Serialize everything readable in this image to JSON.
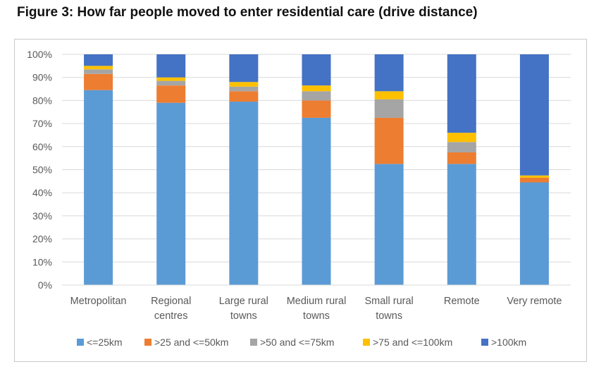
{
  "figure_title": "Figure 3: How far people moved to enter residential care (drive distance)",
  "chart_data": {
    "type": "bar",
    "stacked": true,
    "percent_stacked": true,
    "title": "Figure 3: How far people moved to enter residential care (drive distance)",
    "xlabel": "",
    "ylabel": "",
    "ylim": [
      0,
      100
    ],
    "yticks": [
      "0%",
      "10%",
      "20%",
      "30%",
      "40%",
      "50%",
      "60%",
      "70%",
      "80%",
      "90%",
      "100%"
    ],
    "grid": true,
    "legend_position": "bottom",
    "categories": [
      [
        "Metropolitan"
      ],
      [
        "Regional",
        "centres"
      ],
      [
        "Large rural",
        "towns"
      ],
      [
        "Medium rural",
        "towns"
      ],
      [
        "Small rural",
        "towns"
      ],
      [
        "Remote"
      ],
      [
        "Very remote"
      ]
    ],
    "series": [
      {
        "name": "<=25km",
        "color": "#5B9BD5",
        "values": [
          84.5,
          79.0,
          79.5,
          72.5,
          52.5,
          52.5,
          44.5
        ]
      },
      {
        "name": ">25 and <=50km",
        "color": "#ED7D31",
        "values": [
          7.0,
          7.5,
          4.5,
          7.5,
          20.0,
          5.0,
          2.0
        ]
      },
      {
        "name": ">50 and <=75km",
        "color": "#A5A5A5",
        "values": [
          2.0,
          2.0,
          2.0,
          4.0,
          8.0,
          4.5,
          0.0
        ]
      },
      {
        "name": ">75 and <=100km",
        "color": "#FFC000",
        "values": [
          1.5,
          1.5,
          2.0,
          2.5,
          3.5,
          4.0,
          1.0
        ]
      },
      {
        "name": ">100km",
        "color": "#4472C4",
        "values": [
          5.0,
          10.0,
          12.0,
          13.5,
          16.0,
          34.0,
          52.5
        ]
      }
    ]
  }
}
